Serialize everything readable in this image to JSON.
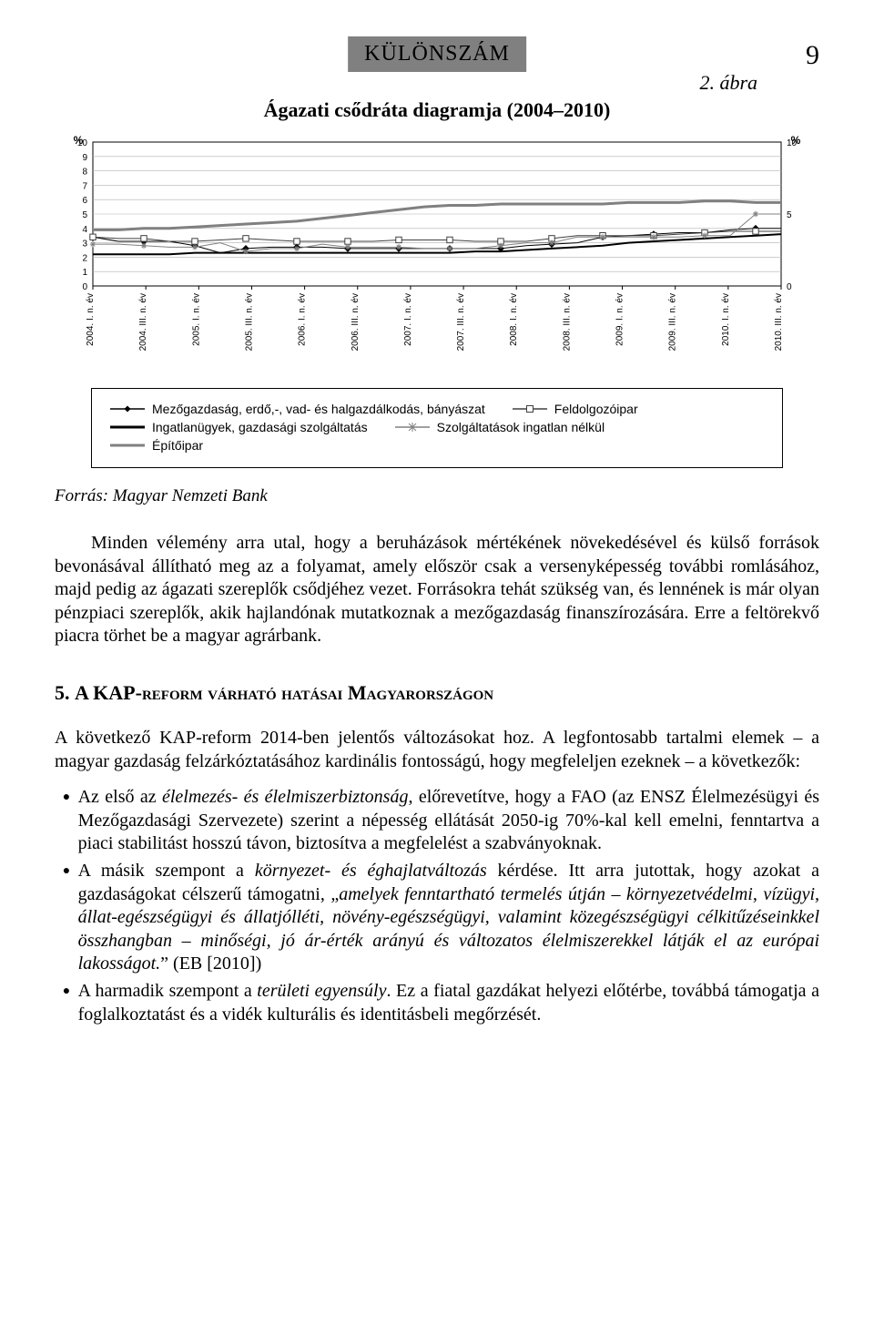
{
  "header": {
    "title": "KÜLÖNSZÁM",
    "page_number": "9"
  },
  "figure": {
    "caption": "Ágazati csődráta diagramja (2004–2010)",
    "number_label": "2. ábra"
  },
  "chart": {
    "type": "line",
    "background_color": "#ffffff",
    "grid_color": "#b0b0b0",
    "axis_color": "#000000",
    "tick_fontsize": 10,
    "y_left": {
      "label": "%",
      "ticks": [
        0,
        1,
        2,
        3,
        4,
        5,
        6,
        7,
        8,
        9,
        10
      ],
      "lim": [
        0,
        10
      ]
    },
    "y_right": {
      "label": "%",
      "ticks": [
        0,
        5,
        10
      ],
      "lim": [
        0,
        10
      ]
    },
    "x_labels": [
      "2004. I. n. év",
      "2004. III. n. év",
      "2005. I. n. év",
      "2005. III. n. év",
      "2006. I. n. év",
      "2006. III. n. év",
      "2007. I. n. év",
      "2007. III. n. év",
      "2008. I. n. év",
      "2008. III. n. év",
      "2009. I. n. év",
      "2009. III. n. év",
      "2010. I. n. év",
      "2010. III. n. év"
    ],
    "series": [
      {
        "name": "Mezőgazdaság, erdő,-, vad- és halgazdálkodás, bányászat",
        "color": "#000000",
        "marker": "diamond",
        "line_width": 1,
        "values": [
          3.4,
          3.1,
          3.1,
          3.1,
          2.8,
          2.3,
          2.6,
          2.7,
          2.7,
          2.7,
          2.6,
          2.6,
          2.6,
          2.6,
          2.6,
          2.6,
          2.6,
          2.8,
          2.9,
          3.0,
          3.4,
          3.5,
          3.6,
          3.7,
          3.7,
          3.9,
          4.0,
          4.0
        ]
      },
      {
        "name": "Feldolgozóipar",
        "color": "#404040",
        "marker": "square",
        "line_width": 1,
        "values": [
          3.4,
          3.3,
          3.3,
          3.1,
          3.1,
          3.2,
          3.3,
          3.2,
          3.1,
          3.1,
          3.1,
          3.1,
          3.2,
          3.2,
          3.2,
          3.1,
          3.1,
          3.1,
          3.3,
          3.5,
          3.5,
          3.5,
          3.5,
          3.6,
          3.7,
          3.8,
          3.8,
          3.8
        ]
      },
      {
        "name": "Ingatlanügyek, gazdasági szolgáltatás",
        "color": "#000000",
        "marker": "none",
        "line_width": 2,
        "values": [
          2.2,
          2.2,
          2.2,
          2.2,
          2.3,
          2.3,
          2.3,
          2.3,
          2.3,
          2.3,
          2.3,
          2.3,
          2.3,
          2.3,
          2.3,
          2.4,
          2.4,
          2.5,
          2.6,
          2.7,
          2.8,
          3.0,
          3.1,
          3.2,
          3.3,
          3.4,
          3.5,
          3.6
        ]
      },
      {
        "name": "Szolgáltatások ingatlan nélkül",
        "color": "#808080",
        "marker": "asterisk",
        "line_width": 1,
        "values": [
          2.9,
          2.9,
          2.8,
          2.7,
          2.7,
          3.0,
          2.4,
          2.6,
          2.6,
          2.9,
          2.7,
          2.7,
          2.7,
          2.6,
          2.6,
          2.6,
          2.8,
          3.0,
          3.0,
          3.4,
          3.4,
          3.4,
          3.4,
          3.4,
          3.5,
          3.5,
          5.0,
          5.0
        ]
      },
      {
        "name": "Építőipar",
        "color": "#808080",
        "marker": "none",
        "line_width": 3,
        "values": [
          3.9,
          3.9,
          4.0,
          4.0,
          4.1,
          4.2,
          4.3,
          4.4,
          4.5,
          4.7,
          4.9,
          5.1,
          5.3,
          5.5,
          5.6,
          5.6,
          5.7,
          5.7,
          5.7,
          5.7,
          5.7,
          5.8,
          5.8,
          5.8,
          5.9,
          5.9,
          5.8,
          5.8
        ]
      }
    ]
  },
  "legend": {
    "items": [
      {
        "label": "Mezőgazdaság, erdő,-, vad- és halgazdálkodás, bányászat",
        "marker": "diamond",
        "color": "#000000"
      },
      {
        "label": "Feldolgozóipar",
        "marker": "square",
        "color": "#404040"
      },
      {
        "label": "Ingatlanügyek, gazdasági szolgáltatás",
        "marker": "none",
        "color": "#000000",
        "thick": true
      },
      {
        "label": "Szolgáltatások ingatlan nélkül",
        "marker": "asterisk",
        "color": "#808080"
      },
      {
        "label": "Építőipar",
        "marker": "none",
        "color": "#808080",
        "thick": true
      }
    ]
  },
  "source": {
    "prefix": "Forrás:",
    "text": " Magyar Nemzeti Bank"
  },
  "para1": "Minden vélemény arra utal, hogy a beruházások mértékének növekedésével és külső források bevonásával állítható meg az a folyamat, amely először csak a versenyképesség további romlásához, majd pedig az ágazati szereplők csődjéhez vezet. Forrásokra tehát szükség van, és lennének is már olyan pénzpiaci szereplők, akik hajlandónak mutatkoznak a mezőgazdaság finanszírozására. Erre a feltörekvő piacra törhet be a magyar agrárbank.",
  "section_heading": {
    "num": "5. ",
    "text": "A KAP-reform várható hatásai Magyarországon"
  },
  "para2": "A következő KAP-reform 2014-ben jelentős változásokat hoz. A legfontosabb tartalmi elemek – a magyar gazdaság felzárkóztatásához kardinális fontosságú, hogy megfeleljen ezeknek – a következők:",
  "bullets": [
    "Az első az <em>élelmezés- és élelmiszerbiztonság</em>, előrevetítve, hogy a FAO (az ENSZ Élelmezésügyi és Mezőgazdasági Szervezete) szerint a népesség ellátását 2050-ig 70%-kal kell emelni, fenntartva a piaci stabilitást hosszú távon, biztosítva a megfelelést a szabványoknak.",
    "A másik szempont a <em>környezet- és éghajlatváltozás</em> kérdése. Itt arra jutottak, hogy azokat a gazdaságokat célszerű támogatni, „<em>amelyek fenntartható termelés útján – környezetvédelmi, vízügyi, állat-egészségügyi és állatjólléti, növény-egészségügyi, valamint közegészségügyi célkitűzéseinkkel összhangban – minőségi, jó ár-érték arányú és változatos élelmiszerekkel látják el az európai lakosságot.</em>” (EB [2010])",
    "A harmadik szempont a <em>területi egyensúly</em>. Ez a fiatal gazdákat helyezi előtérbe, továbbá támogatja a foglalkoztatást és a vidék kulturális és identitásbeli megőrzését."
  ]
}
